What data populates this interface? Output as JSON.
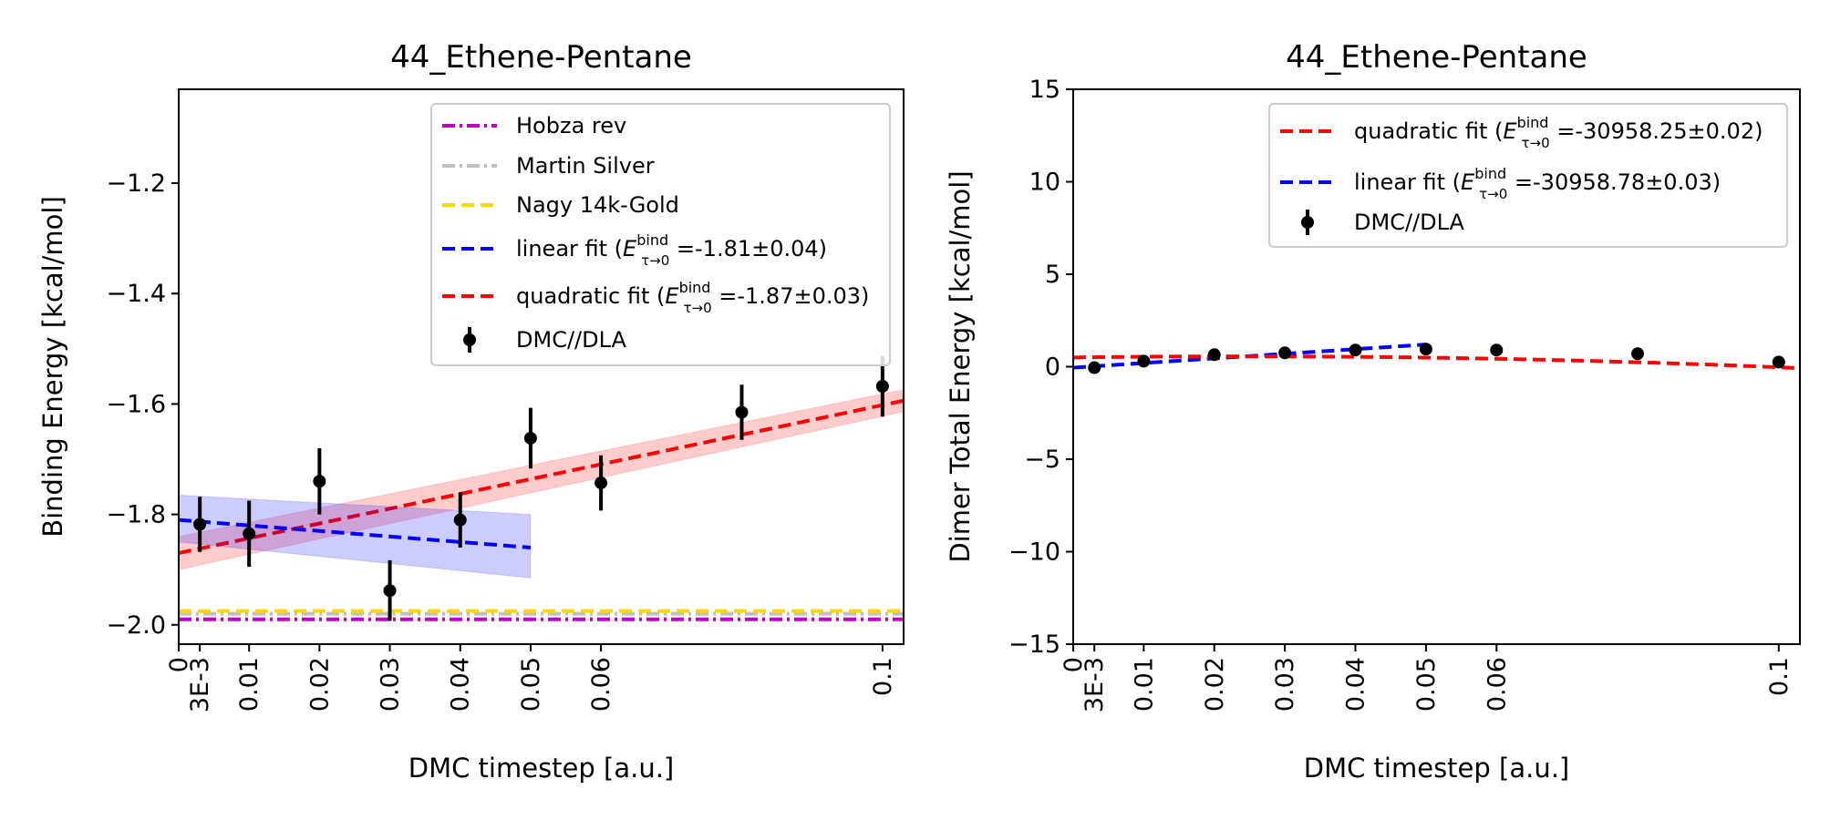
{
  "chart_data": [
    {
      "type": "line",
      "title": "44_Ethene-Pentane",
      "xlabel": "DMC timestep [a.u.]",
      "ylabel": "Binding Energy [kcal/mol]",
      "xlim": [
        0,
        0.103
      ],
      "ylim": [
        -2.035,
        -1.03
      ],
      "x_ticks": [
        {
          "value": 0,
          "label": "0"
        },
        {
          "value": 0.003,
          "label": "3E-3"
        },
        {
          "value": 0.01,
          "label": "0.01"
        },
        {
          "value": 0.02,
          "label": "0.02"
        },
        {
          "value": 0.03,
          "label": "0.03"
        },
        {
          "value": 0.04,
          "label": "0.04"
        },
        {
          "value": 0.05,
          "label": "0.05"
        },
        {
          "value": 0.06,
          "label": "0.06"
        },
        {
          "value": 0.1,
          "label": "0.1"
        }
      ],
      "y_ticks": [
        {
          "value": -2.0,
          "label": "−2.0"
        },
        {
          "value": -1.8,
          "label": "−1.8"
        },
        {
          "value": -1.6,
          "label": "−1.6"
        },
        {
          "value": -1.4,
          "label": "−1.4"
        },
        {
          "value": -1.2,
          "label": "−1.2"
        }
      ],
      "legend_position": "upper right",
      "reference_lines": [
        {
          "name": "Hobza rev",
          "y": -1.99,
          "color": "#bf00bf",
          "style": "dashdot"
        },
        {
          "name": "Martin Silver",
          "y": -1.98,
          "color": "#bfbfbf",
          "style": "dashdot"
        },
        {
          "name": "Nagy 14k-Gold",
          "y": -1.975,
          "color": "#ffd700",
          "style": "dashed"
        }
      ],
      "fits": [
        {
          "name": "quadratic fit",
          "legend_value": " =-1.87±0.03)",
          "color": "#ff0000",
          "x": [
            0,
            0.103
          ],
          "y": [
            -1.87,
            -1.594
          ],
          "band_upper": [
            -1.84,
            -1.574
          ],
          "band_lower": [
            -1.9,
            -1.614
          ],
          "band_color": "#ff0000"
        },
        {
          "name": "linear fit",
          "legend_value": " =-1.81±0.04)",
          "color": "#0000ff",
          "x": [
            0,
            0.05
          ],
          "y": [
            -1.81,
            -1.86
          ],
          "band_upper": [
            -1.765,
            -1.8
          ],
          "band_lower": [
            -1.85,
            -1.915
          ],
          "band_color": "#0000ff"
        }
      ],
      "points": {
        "name": "DMC//DLA",
        "x": [
          0.003,
          0.01,
          0.02,
          0.03,
          0.04,
          0.05,
          0.06,
          0.08,
          0.1
        ],
        "y": [
          -1.818,
          -1.835,
          -1.74,
          -1.938,
          -1.81,
          -1.662,
          -1.743,
          -1.615,
          -1.568
        ],
        "err": [
          0.05,
          0.06,
          0.06,
          0.055,
          0.05,
          0.055,
          0.05,
          0.05,
          0.055
        ]
      }
    },
    {
      "type": "line",
      "title": "44_Ethene-Pentane",
      "xlabel": "DMC timestep [a.u.]",
      "ylabel": "Dimer Total Energy [kcal/mol]",
      "xlim": [
        0,
        0.103
      ],
      "ylim": [
        -15,
        15
      ],
      "x_ticks": [
        {
          "value": 0,
          "label": "0"
        },
        {
          "value": 0.003,
          "label": "3E-3"
        },
        {
          "value": 0.01,
          "label": "0.01"
        },
        {
          "value": 0.02,
          "label": "0.02"
        },
        {
          "value": 0.03,
          "label": "0.03"
        },
        {
          "value": 0.04,
          "label": "0.04"
        },
        {
          "value": 0.05,
          "label": "0.05"
        },
        {
          "value": 0.06,
          "label": "0.06"
        },
        {
          "value": 0.1,
          "label": "0.1"
        }
      ],
      "y_ticks": [
        {
          "value": -15,
          "label": "−15"
        },
        {
          "value": -10,
          "label": "−10"
        },
        {
          "value": -5,
          "label": "−5"
        },
        {
          "value": 0,
          "label": "0"
        },
        {
          "value": 5,
          "label": "5"
        },
        {
          "value": 10,
          "label": "10"
        },
        {
          "value": 15,
          "label": "15"
        }
      ],
      "legend_position": "upper right",
      "reference_lines": [],
      "fits": [
        {
          "name": "linear fit",
          "legend_value": " =-30958.78±0.03)",
          "color": "#0000ff",
          "x": [
            0,
            0.05
          ],
          "y": [
            -0.05,
            1.2
          ],
          "band_upper": null,
          "band_lower": null,
          "band_color": "#0000ff"
        },
        {
          "name": "quadratic fit",
          "legend_value": " =-30958.25±0.02)",
          "color": "#ff0000",
          "quadratic": [
            0.5,
            5.0,
            -103
          ],
          "x": [
            0,
            0.103
          ],
          "band_upper": null,
          "band_lower": null,
          "band_color": "#ff0000"
        }
      ],
      "points": {
        "name": "DMC//DLA",
        "x": [
          0.003,
          0.01,
          0.02,
          0.03,
          0.04,
          0.05,
          0.06,
          0.08,
          0.1
        ],
        "y": [
          -0.05,
          0.3,
          0.65,
          0.75,
          0.9,
          0.95,
          0.9,
          0.7,
          0.25
        ],
        "err": [
          0.03,
          0.03,
          0.03,
          0.03,
          0.03,
          0.03,
          0.03,
          0.03,
          0.03
        ]
      }
    }
  ]
}
